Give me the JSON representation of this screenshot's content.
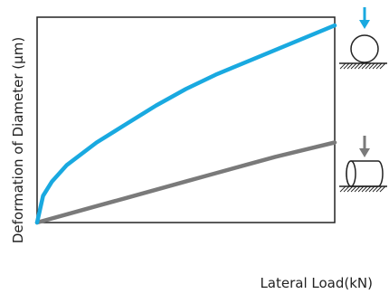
{
  "chart_data": {
    "type": "line",
    "xlabel": "Lateral Load(kN)",
    "ylabel": "Deformation of Diameter (μm)",
    "xlim": [
      0,
      1
    ],
    "ylim": [
      0,
      1
    ],
    "grid": false,
    "legend": "none",
    "series": [
      {
        "color": "#19a9e0",
        "icon": "ball-load-icon",
        "x": [
          0,
          0.02,
          0.05,
          0.1,
          0.2,
          0.3,
          0.4,
          0.5,
          0.6,
          0.7,
          0.8,
          0.9,
          1.0
        ],
        "y": [
          0,
          0.13,
          0.2,
          0.28,
          0.39,
          0.48,
          0.57,
          0.65,
          0.72,
          0.78,
          0.84,
          0.9,
          0.96
        ]
      },
      {
        "color": "#7a7a7a",
        "icon": "roller-load-icon",
        "x": [
          0,
          0.1,
          0.2,
          0.3,
          0.4,
          0.5,
          0.6,
          0.7,
          0.8,
          0.9,
          1.0
        ],
        "y": [
          0,
          0.04,
          0.08,
          0.12,
          0.16,
          0.2,
          0.24,
          0.28,
          0.32,
          0.355,
          0.39
        ]
      }
    ],
    "colors": {
      "axis": "#222222",
      "ball_arrow": "#19a9e0",
      "roller_arrow": "#7a7a7a"
    }
  }
}
